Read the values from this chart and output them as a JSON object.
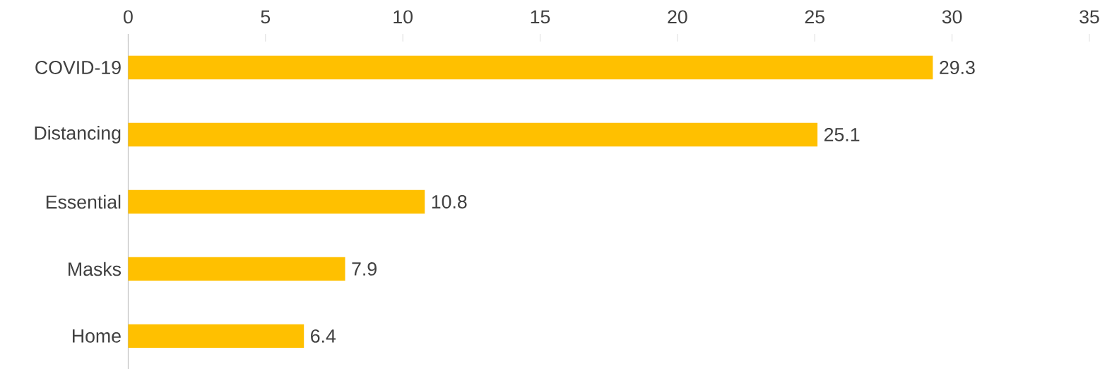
{
  "chart_data": {
    "type": "bar",
    "orientation": "horizontal",
    "categories": [
      "COVID-19",
      "Distancing",
      "Essential",
      "Masks",
      "Home"
    ],
    "values": [
      29.3,
      25.1,
      10.8,
      7.9,
      6.4
    ],
    "color": "#ffc000",
    "xlim": [
      0,
      35
    ],
    "xticks": [
      0,
      5,
      10,
      15,
      20,
      25,
      30,
      35
    ],
    "data_labels": true,
    "grid": false
  }
}
